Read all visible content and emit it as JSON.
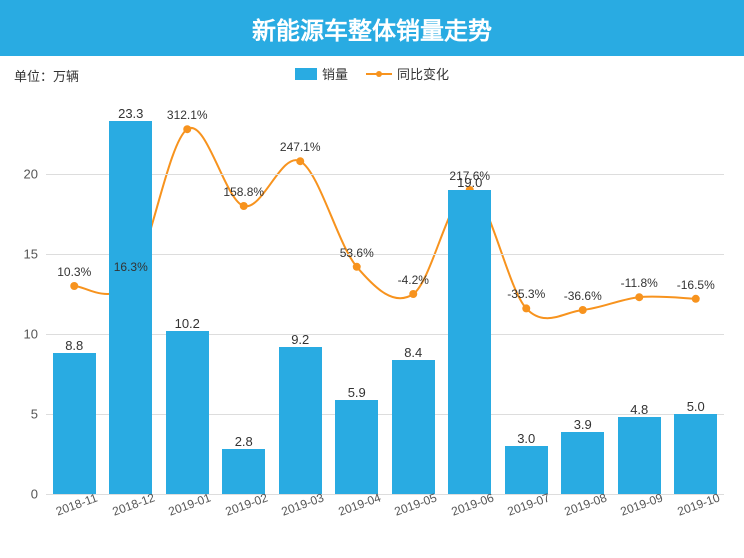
{
  "chart": {
    "type": "bar+line",
    "title": "新能源车整体销量走势",
    "title_bg_color": "#29abe2",
    "title_color": "#ffffff",
    "title_fontsize": 24,
    "unit_label": "单位：万辆",
    "categories": [
      "2018-11",
      "2018-12",
      "2019-01",
      "2019-02",
      "2019-03",
      "2019-04",
      "2019-05",
      "2019-06",
      "2019-07",
      "2019-08",
      "2019-09",
      "2019-10"
    ],
    "bar": {
      "name": "销量",
      "values": [
        8.8,
        23.3,
        10.2,
        2.8,
        9.2,
        5.9,
        8.4,
        19.0,
        3.0,
        3.9,
        4.8,
        5.0
      ],
      "color": "#29abe2",
      "label_fontsize": 13
    },
    "line": {
      "name": "同比变化",
      "values_pct": [
        10.3,
        16.3,
        312.1,
        158.8,
        247.1,
        53.6,
        -4.2,
        217.6,
        -35.3,
        -36.6,
        -11.8,
        -16.5
      ],
      "y_positions": [
        13.0,
        13.3,
        22.8,
        18.0,
        20.8,
        14.2,
        12.5,
        19.0,
        11.6,
        11.5,
        12.3,
        12.2
      ],
      "color": "#f7931e",
      "marker_color": "#f7931e",
      "line_width": 2,
      "marker_radius": 4
    },
    "y_axis": {
      "min": 0,
      "max": 25,
      "ticks": [
        0,
        5,
        10,
        15,
        20
      ],
      "tick_fontsize": 13,
      "tick_color": "#555555"
    },
    "grid_color": "#dddddd",
    "background_color": "#ffffff",
    "legend": {
      "items": [
        {
          "type": "bar",
          "label": "销量",
          "color": "#29abe2"
        },
        {
          "type": "line",
          "label": "同比变化",
          "color": "#f7931e"
        }
      ]
    }
  }
}
